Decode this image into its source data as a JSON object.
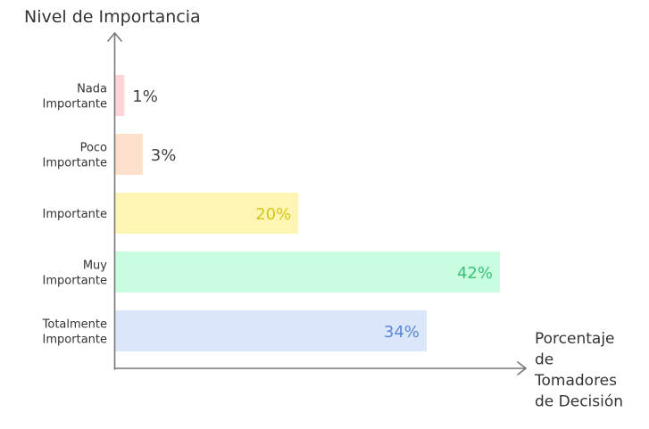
{
  "chart_data": {
    "type": "bar",
    "orientation": "horizontal",
    "title": "",
    "ylabel": "Nivel de Importancia",
    "xlabel_lines": [
      "Porcentaje",
      "de",
      "Tomadores",
      "de Decisión"
    ],
    "categories": [
      [
        "Nada",
        "Importante"
      ],
      [
        "Poco",
        "Importante"
      ],
      [
        "Importante"
      ],
      [
        "Muy",
        "Importante"
      ],
      [
        "Totalmente",
        "Importante"
      ]
    ],
    "values": [
      1,
      3,
      20,
      42,
      34
    ],
    "data_labels": [
      "1%",
      "3%",
      "20%",
      "42%",
      "34%"
    ],
    "xlim": [
      0,
      42
    ],
    "grid": false,
    "legend": "none",
    "colors": {
      "fills": [
        "#fdd5d8",
        "#fde0cc",
        "#fef5b4",
        "#c8fde0",
        "#dbe6fb"
      ],
      "labels": [
        "#444444",
        "#444444",
        "#d8c615",
        "#3cc07a",
        "#5a87d6"
      ],
      "axis": "#777777"
    }
  }
}
